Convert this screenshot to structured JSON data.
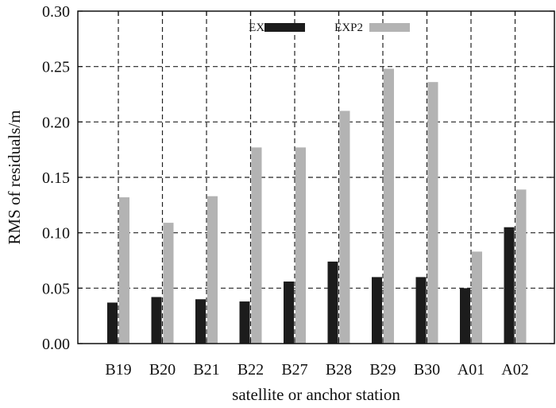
{
  "chart_data": {
    "type": "bar",
    "title": "",
    "xlabel": "satellite or anchor station",
    "ylabel": "RMS of  residuals/m",
    "categories": [
      "B19",
      "B20",
      "B21",
      "B22",
      "B27",
      "B28",
      "B29",
      "B30",
      "A01",
      "A02"
    ],
    "series": [
      {
        "name": "EXP1",
        "color": "#1c1c1c",
        "values": [
          0.037,
          0.042,
          0.04,
          0.038,
          0.056,
          0.074,
          0.06,
          0.06,
          0.05,
          0.105
        ]
      },
      {
        "name": "EXP2",
        "color": "#b3b3b3",
        "values": [
          0.132,
          0.109,
          0.133,
          0.177,
          0.177,
          0.21,
          0.248,
          0.236,
          0.083,
          0.139
        ]
      }
    ],
    "yticks": [
      "0.00",
      "0.05",
      "0.10",
      "0.15",
      "0.20",
      "0.25",
      "0.30"
    ],
    "ylim": [
      0,
      0.3
    ],
    "grid": true,
    "grid_style": "dashed",
    "legend_position": "top-center"
  }
}
